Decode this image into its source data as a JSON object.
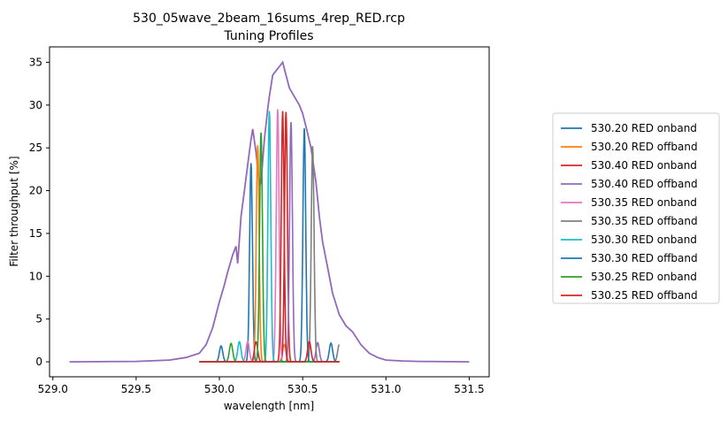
{
  "chart_data": {
    "type": "line",
    "title": "530_05wave_2beam_16sums_4rep_RED.rcp",
    "subtitle": "Tuning Profiles",
    "xlabel": "wavelength [nm]",
    "ylabel": "Filter throughput [%]",
    "xlim": [
      528.98,
      531.62
    ],
    "ylim": [
      -1.75,
      36.8
    ],
    "xticks": [
      529.0,
      529.5,
      530.0,
      530.5,
      531.0,
      531.5
    ],
    "xtick_labels": [
      "529.0",
      "529.5",
      "530.0",
      "530.5",
      "531.0",
      "531.5"
    ],
    "yticks": [
      0,
      5,
      10,
      15,
      20,
      25,
      30,
      35
    ],
    "ytick_labels": [
      "0",
      "5",
      "10",
      "15",
      "20",
      "25",
      "30",
      "35"
    ],
    "grid": false,
    "legend_position": "outside-right",
    "series": [
      {
        "name": "530.20 RED onband",
        "color": "#1f77b4",
        "center": 530.19,
        "peak": 23.2,
        "width": 0.0085
      },
      {
        "name": "530.20 RED offband",
        "color": "#ff7f0e",
        "center": 530.23,
        "peak": 25.3,
        "width": 0.0085
      },
      {
        "name": "530.40 RED onband",
        "color": "#d62728",
        "center": 530.4,
        "peak": 29.2,
        "width": 0.0085
      },
      {
        "name": "530.40 RED offband",
        "color": "#9467bd",
        "center": 530.43,
        "peak": 28.0,
        "width": 0.0085
      },
      {
        "name": "530.35 RED onband",
        "color": "#e377c2",
        "center": 530.35,
        "peak": 29.5,
        "width": 0.0085
      },
      {
        "name": "530.35 RED offband",
        "color": "#7f7f7f",
        "center": 530.56,
        "peak": 25.2,
        "width": 0.0085
      },
      {
        "name": "530.30 RED onband",
        "color": "#17becf",
        "center": 530.3,
        "peak": 29.3,
        "width": 0.0085
      },
      {
        "name": "530.30 RED offband",
        "color": "#1f77b4",
        "center": 530.51,
        "peak": 27.3,
        "width": 0.0085
      },
      {
        "name": "530.25 RED onband",
        "color": "#2ca02c",
        "center": 530.25,
        "peak": 26.8,
        "width": 0.0085
      },
      {
        "name": "530.25 RED offband",
        "color": "#d62728",
        "center": 530.38,
        "peak": 29.3,
        "width": 0.0085
      }
    ],
    "envelope": {
      "color": "#9467bd",
      "x": [
        529.1,
        529.5,
        529.7,
        529.8,
        529.88,
        529.92,
        529.96,
        530.0,
        530.03,
        530.05,
        530.08,
        530.1,
        530.11,
        530.13,
        530.15,
        530.17,
        530.19,
        530.2,
        530.22,
        530.24,
        530.25,
        530.27,
        530.29,
        530.3,
        530.32,
        530.34,
        530.36,
        530.38,
        530.4,
        530.42,
        530.45,
        530.48,
        530.5,
        530.52,
        530.55,
        530.58,
        530.6,
        530.62,
        530.65,
        530.68,
        530.72,
        530.76,
        530.8,
        530.85,
        530.9,
        530.95,
        531.0,
        531.1,
        531.2,
        531.5
      ],
      "y": [
        0.0,
        0.05,
        0.2,
        0.5,
        1.0,
        2.0,
        4.0,
        7.0,
        9.0,
        10.5,
        12.5,
        13.5,
        11.5,
        17.0,
        20.0,
        23.0,
        26.0,
        27.2,
        24.5,
        20.5,
        21.0,
        26.0,
        29.5,
        31.0,
        33.5,
        34.0,
        34.5,
        35.0,
        33.5,
        32.0,
        31.0,
        30.0,
        29.0,
        27.5,
        25.0,
        21.0,
        17.0,
        14.0,
        11.0,
        8.0,
        5.5,
        4.2,
        3.5,
        2.0,
        1.0,
        0.5,
        0.2,
        0.1,
        0.05,
        0.0
      ]
    }
  }
}
